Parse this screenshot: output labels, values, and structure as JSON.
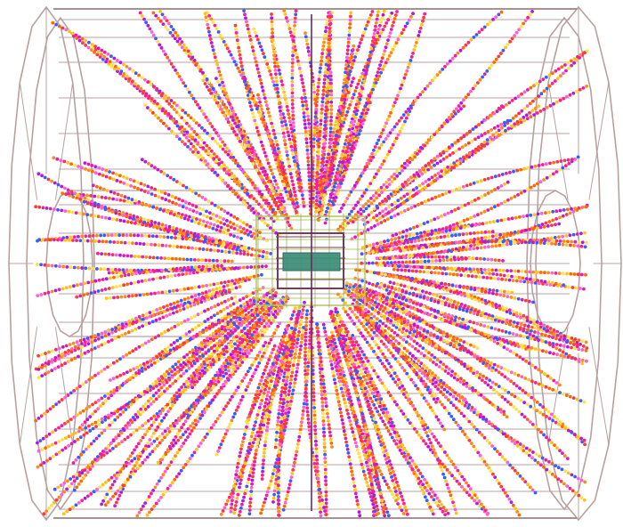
{
  "scene": {
    "description_kind": "particle-collision-event-display",
    "background": "#ffffff",
    "colors": {
      "outer_detector": "#b9a0a0",
      "outer_detector_dark": "#8a6e6e",
      "beam_axis": "#6a2a5a",
      "inner_tracker": "#b7c96a",
      "inner_tracker_dark": "#8fa23f",
      "pixel_detector": "#7a3a5a",
      "core": "#3f8f7a",
      "track_palette": [
        "#ff1f8a",
        "#ff3a3a",
        "#ff8a1a",
        "#ffc21a",
        "#e01fb0",
        "#b01ae0",
        "#3a5cff",
        "#ff5fd0",
        "#ff6a00",
        "#ffe14a"
      ]
    },
    "tracks_count_estimate": 180,
    "icons": [
      "outer-detector-barrel-wireframe",
      "inner-tracker-wireframe",
      "pixel-detector-core",
      "beam-axis-line",
      "particle-tracks"
    ]
  }
}
